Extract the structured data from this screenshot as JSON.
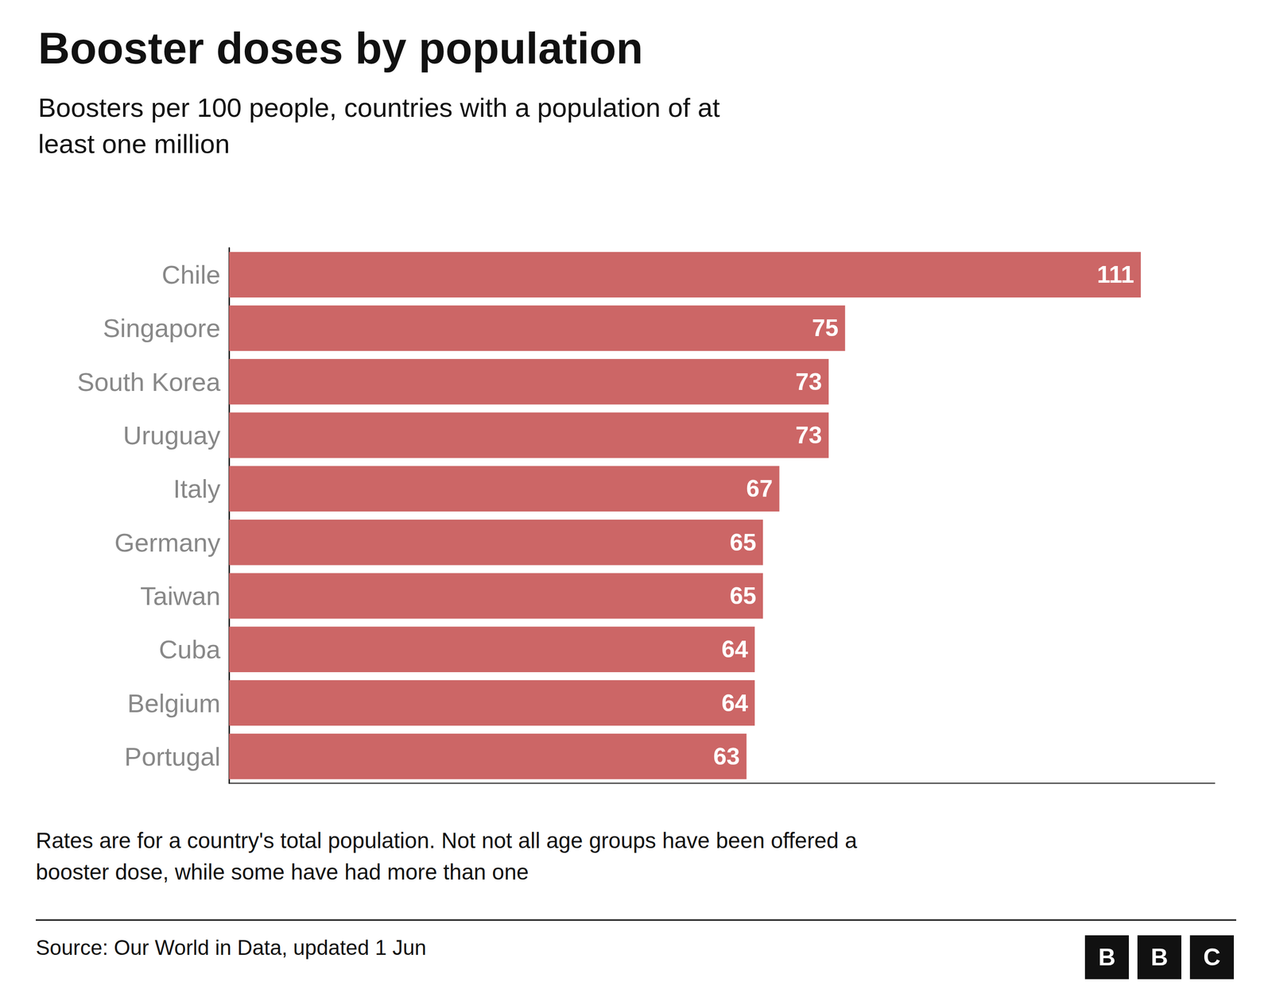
{
  "chart_data": {
    "type": "bar",
    "orientation": "horizontal",
    "title": "Booster doses by population",
    "subtitle": "Boosters per 100 people, countries with a population of at\nleast one million",
    "footnote": "Rates are for a country's total population. Not not all age groups have been offered a\nbooster dose, while some have had more than one",
    "source": "Source: Our World in Data, updated 1 Jun",
    "logo": "BBC",
    "categories": [
      "Chile",
      "Singapore",
      "South Korea",
      "Uruguay",
      "Italy",
      "Germany",
      "Taiwan",
      "Cuba",
      "Belgium",
      "Portugal"
    ],
    "values": [
      111,
      75,
      73,
      73,
      67,
      65,
      65,
      64,
      64,
      63
    ],
    "color": "#cc6666",
    "xlim": [
      0,
      120
    ],
    "data_labels": true,
    "tick_labels": "y",
    "grid": false
  }
}
